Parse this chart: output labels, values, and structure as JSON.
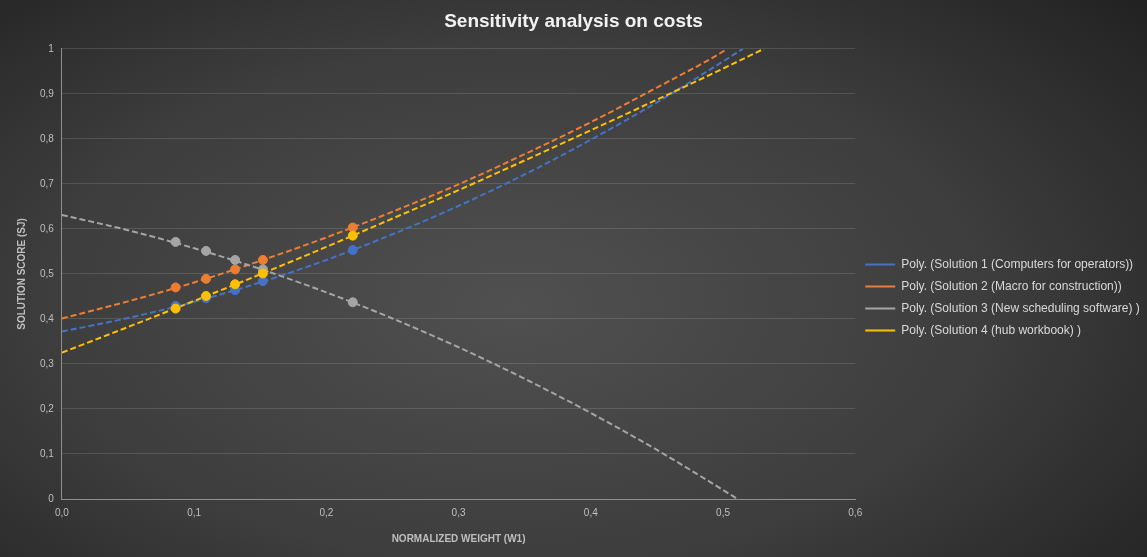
{
  "chart_data": {
    "type": "scatter",
    "title": "Sensitivity analysis on costs",
    "xlabel": "NORMALIZED WEIGHT (W1)",
    "ylabel": "SOLUTION SCORE (SJ)",
    "x": [
      0.086,
      0.109,
      0.131,
      0.152,
      0.22
    ],
    "series": [
      {
        "color": "#4472c4",
        "values": [
          0.429,
          0.446,
          0.464,
          0.484,
          0.553
        ]
      },
      {
        "color": "#ed7d31",
        "values": [
          0.47,
          0.489,
          0.51,
          0.531,
          0.603
        ]
      },
      {
        "color": "#a5a5a5",
        "values": [
          0.571,
          0.551,
          0.531,
          0.51,
          0.437
        ]
      },
      {
        "color": "#ffc000",
        "values": [
          0.423,
          0.451,
          0.477,
          0.501,
          0.585
        ]
      },
      {
        "type": "line",
        "name": "Poly. (Solution 1 (Computers for operators))",
        "color": "#4472c4",
        "marker": "none",
        "x": [
          0,
          0.05,
          0.1,
          0.15,
          0.2,
          0.25,
          0.3,
          0.35,
          0.4,
          0.45,
          0.5,
          0.515
        ],
        "values": [
          0.372,
          0.402,
          0.438,
          0.481,
          0.531,
          0.588,
          0.651,
          0.721,
          0.798,
          0.881,
          0.972,
          1
        ]
      },
      {
        "type": "line",
        "name": "Poly. (Solution 2 (Macro for construction))",
        "color": "#ed7d31",
        "marker": "none",
        "x": [
          0,
          0.05,
          0.1,
          0.15,
          0.2,
          0.25,
          0.3,
          0.35,
          0.4,
          0.45,
          0.5,
          0.503
        ],
        "values": [
          0.401,
          0.439,
          0.481,
          0.529,
          0.581,
          0.638,
          0.699,
          0.766,
          0.837,
          0.914,
          0.994,
          1
        ]
      },
      {
        "type": "line",
        "name": "Poly. (Solution 3 (New scheduling software) )",
        "color": "#a5a5a5",
        "marker": "none",
        "x": [
          0,
          0.05,
          0.1,
          0.15,
          0.2,
          0.25,
          0.3,
          0.35,
          0.4,
          0.45,
          0.5,
          0.511
        ],
        "values": [
          0.631,
          0.597,
          0.557,
          0.511,
          0.459,
          0.401,
          0.337,
          0.267,
          0.191,
          0.109,
          0.02,
          0
        ]
      },
      {
        "type": "line",
        "name": "Poly. (Solution 4 (hub workbook) )",
        "color": "#ffc000",
        "marker": "none",
        "x": [
          0,
          0.05,
          0.1,
          0.15,
          0.2,
          0.25,
          0.3,
          0.35,
          0.4,
          0.45,
          0.5,
          0.531
        ],
        "values": [
          0.325,
          0.382,
          0.44,
          0.499,
          0.56,
          0.623,
          0.686,
          0.752,
          0.819,
          0.887,
          0.956,
          1
        ]
      }
    ],
    "xlim": [
      0,
      0.6
    ],
    "xticks": [
      {
        "value": 0,
        "label": "0,0"
      },
      {
        "value": 0.1,
        "label": "0,1"
      },
      {
        "value": 0.2,
        "label": "0,2"
      },
      {
        "value": 0.3,
        "label": "0,3"
      },
      {
        "value": 0.4,
        "label": "0,4"
      },
      {
        "value": 0.5,
        "label": "0,5"
      },
      {
        "value": 0.6,
        "label": "0,6"
      }
    ],
    "ylim": [
      0,
      1
    ],
    "yticks": [
      0,
      {
        "value": 0.1,
        "label": "0,1"
      },
      {
        "value": 0.2,
        "label": "0,2"
      },
      {
        "value": 0.3,
        "label": "0,3"
      },
      {
        "value": 0.4,
        "label": "0,4"
      },
      {
        "value": 0.5,
        "label": "0,5"
      },
      {
        "value": 0.6,
        "label": "0,6"
      },
      {
        "value": 0.7,
        "label": "0,7"
      },
      {
        "value": 0.8,
        "label": "0,8"
      },
      {
        "value": 0.9,
        "label": "0,9"
      },
      1
    ],
    "grid": "y",
    "legend": "right",
    "marker": "circle",
    "line_style": "dashed"
  }
}
